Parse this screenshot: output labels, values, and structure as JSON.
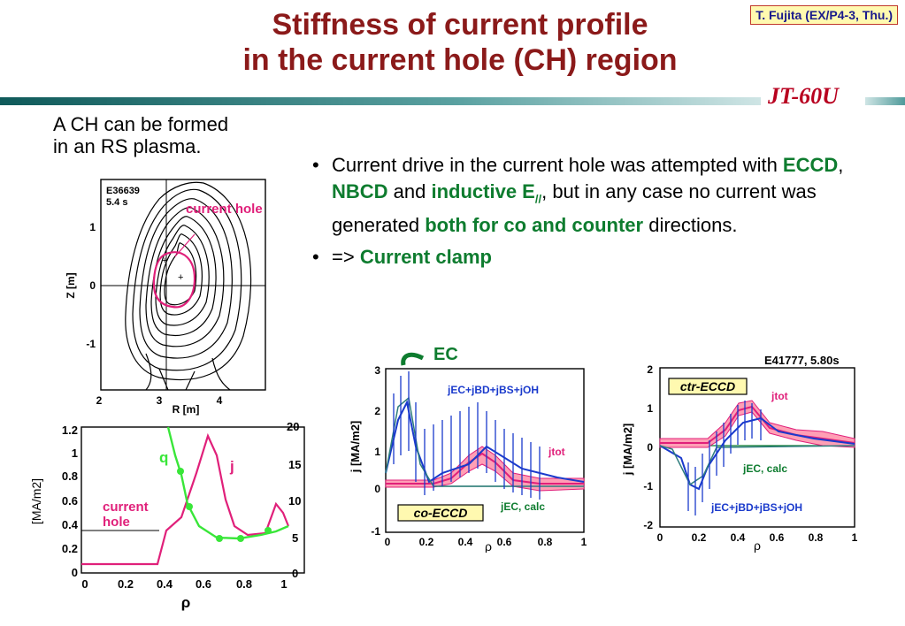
{
  "header": {
    "title_line1": "Stiffness of current profile",
    "title_line2": "in the current hole (CH) region",
    "tag": "T. Fujita (EX/P4-3, Thu.)",
    "jt": "JT-60U"
  },
  "intro": {
    "line1": "A CH can be formed",
    "line2": "in an RS plasma."
  },
  "bullets": {
    "b1": {
      "p1": "Current drive in the current hole was attempted with ",
      "eccd": "ECCD",
      "comma": ", ",
      "nbcd": "NBCD",
      "and": " and ",
      "ind": "inductive E",
      "sub": "//",
      "p2": ", but in any case no current was generated ",
      "both": "both for co and counter",
      "p3": " directions."
    },
    "b2": {
      "arrow": "=> ",
      "clamp": "Current clamp"
    }
  },
  "equilibrium": {
    "shot": "E36639",
    "time": "5.4 s",
    "label": "current hole",
    "xlabel": "R [m]",
    "ylabel": "Z [m]",
    "xticks": [
      "2",
      "3",
      "4"
    ],
    "yticks": [
      "1",
      "0",
      "-1"
    ],
    "plus_a": "+",
    "plus_b": "+"
  },
  "profile": {
    "ylabel": "[MA/m2]",
    "xlabel": "ρ",
    "ylabels": [
      "1.2",
      "1",
      "0.8",
      "0.6",
      "0.4",
      "0.2",
      "0"
    ],
    "yrlabels": [
      "20",
      "15",
      "10",
      "5",
      "0"
    ],
    "xticks": [
      "0",
      "0.2",
      "0.4",
      "0.6",
      "0.8",
      "1"
    ],
    "q": "q",
    "j": "j",
    "ch1": "current",
    "ch2": "hole"
  },
  "co": {
    "ec": "EC",
    "ylabel": "j [MA/m2]",
    "yticks": [
      "3",
      "2",
      "1",
      "0",
      "-1"
    ],
    "xticks": [
      "0",
      "0.2",
      "0.4",
      "0.6",
      "0.8",
      "1"
    ],
    "xlabel": "ρ",
    "sum": "jEC+jBD+jBS+jOH",
    "tot": "jtot",
    "calc": "jEC, calc",
    "box": "co-ECCD"
  },
  "ctr": {
    "shot": "E41777, 5.80s",
    "ylabel": "j [MA/m2]",
    "yticks": [
      "2",
      "1",
      "0",
      "-1",
      "-2"
    ],
    "xticks": [
      "0",
      "0.2",
      "0.4",
      "0.6",
      "0.8",
      "1"
    ],
    "xlabel": "ρ",
    "sum": "jEC+jBD+jBS+jOH",
    "tot": "jtot",
    "calc": "jEC, calc",
    "box": "ctr-ECCD"
  },
  "colors": {
    "title": "#8b1a1a",
    "green": "#0e7c2f",
    "magenta": "#e0207a",
    "teal": "#2e7d7d"
  }
}
